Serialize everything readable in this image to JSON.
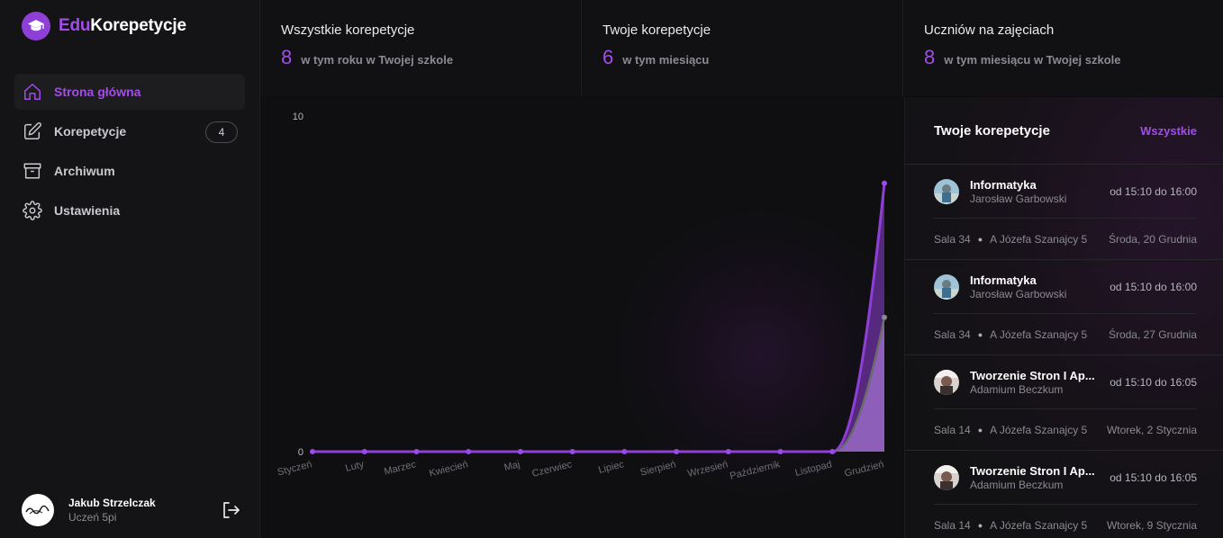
{
  "app": {
    "logo_prefix": "Edu",
    "logo_suffix": "Korepetycje"
  },
  "sidebar": {
    "items": [
      {
        "label": "Strona główna",
        "icon": "home-icon",
        "active": true
      },
      {
        "label": "Korepetycje",
        "icon": "pencil-icon",
        "badge": "4"
      },
      {
        "label": "Archiwum",
        "icon": "archive-icon"
      },
      {
        "label": "Ustawienia",
        "icon": "gear-icon"
      }
    ],
    "user": {
      "name": "Jakub Strzelczak",
      "role": "Uczeń 5pi"
    }
  },
  "stats": [
    {
      "title": "Wszystkie korepetycje",
      "value": "8",
      "sub": "w tym roku w Twojej szkole"
    },
    {
      "title": "Twoje korepetycje",
      "value": "6",
      "sub": "w tym miesiącu"
    },
    {
      "title": "Uczniów na zajęciach",
      "value": "8",
      "sub": "w tym miesiącu w Twojej szkole"
    }
  ],
  "chart_data": {
    "type": "area",
    "categories": [
      "Styczeń",
      "Luty",
      "Marzec",
      "Kwiecień",
      "Maj",
      "Czerwiec",
      "Lipiec",
      "Sierpień",
      "Wrzesień",
      "Październik",
      "Listopad",
      "Grudzień"
    ],
    "series": [
      {
        "values": [
          0,
          0,
          0,
          0,
          0,
          0,
          0,
          0,
          0,
          0,
          0,
          8
        ],
        "color": "#8e3fd6"
      },
      {
        "values": [
          0,
          0,
          0,
          0,
          0,
          0,
          0,
          0,
          0,
          0,
          0,
          4
        ],
        "color": "#6a6a6a"
      }
    ],
    "ylim": [
      0,
      10
    ],
    "yticks": [
      "0",
      "10"
    ]
  },
  "panel": {
    "title": "Twoje korepetycje",
    "all_link": "Wszystkie",
    "lessons": [
      {
        "subject": "Informatyka",
        "teacher": "Jarosław Garbowski",
        "time": "od 15:10 do 16:00",
        "room": "Sala 34",
        "address": "A Józefa Szanajcy 5",
        "date": "Środa, 20 Grudnia"
      },
      {
        "subject": "Informatyka",
        "teacher": "Jarosław Garbowski",
        "time": "od 15:10 do 16:00",
        "room": "Sala 34",
        "address": "A Józefa Szanajcy 5",
        "date": "Środa, 27 Grudnia"
      },
      {
        "subject": "Tworzenie Stron I Ap...",
        "teacher": "Adamium Beczkum",
        "time": "od 15:10 do 16:05",
        "room": "Sala 14",
        "address": "A Józefa Szanajcy 5",
        "date": "Wtorek, 2 Stycznia"
      },
      {
        "subject": "Tworzenie Stron I Ap...",
        "teacher": "Adamium Beczkum",
        "time": "od 15:10 do 16:05",
        "room": "Sala 14",
        "address": "A Józefa Szanajcy 5",
        "date": "Wtorek, 9 Stycznia"
      }
    ]
  }
}
